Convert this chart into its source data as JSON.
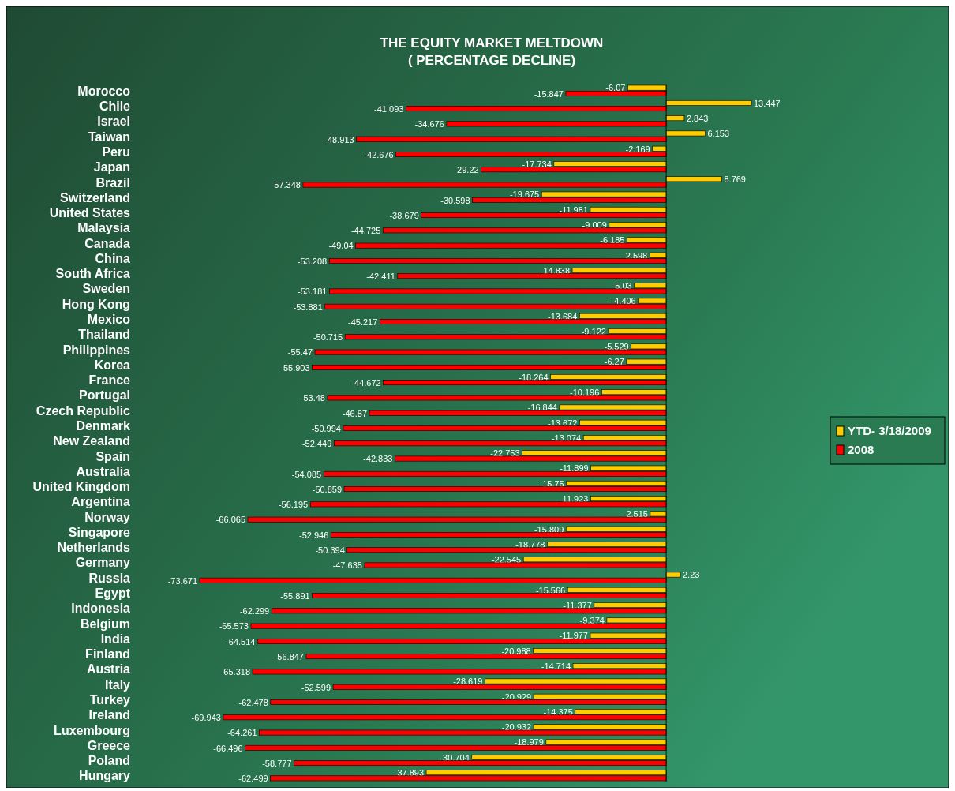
{
  "chart_data": {
    "type": "bar",
    "orientation": "horizontal",
    "title": "THE EQUITY MARKET MELTDOWN",
    "subtitle": "( PERCENTAGE DECLINE)",
    "categories": [
      "Morocco",
      "Chile",
      "Israel",
      "Taiwan",
      "Peru",
      "Japan",
      "Brazil",
      "Switzerland",
      "United States",
      "Malaysia",
      "Canada",
      "China",
      "South Africa",
      "Sweden",
      "Hong Kong",
      "Mexico",
      "Thailand",
      "Philippines",
      "Korea",
      "France",
      "Portugal",
      "Czech Republic",
      "Denmark",
      "New Zealand",
      "Spain",
      "Australia",
      "United Kingdom",
      "Argentina",
      "Norway",
      "Singapore",
      "Netherlands",
      "Germany",
      "Russia",
      "Egypt",
      "Indonesia",
      "Belgium",
      "India",
      "Finland",
      "Austria",
      "Italy",
      "Turkey",
      "Ireland",
      "Luxembourg",
      "Greece",
      "Poland",
      "Hungary"
    ],
    "series": [
      {
        "name": "YTD- 3/18/2009",
        "color": "#ffcc00",
        "values": [
          -6.07,
          13.447,
          2.843,
          6.153,
          -2.169,
          -17.734,
          8.769,
          -19.675,
          -11.981,
          -9.009,
          -6.185,
          -2.598,
          -14.838,
          -5.03,
          -4.406,
          -13.684,
          -9.122,
          -5.529,
          -6.27,
          -18.264,
          -10.196,
          -16.844,
          -13.672,
          -13.074,
          -22.753,
          -11.899,
          -15.75,
          -11.923,
          -2.515,
          -15.809,
          -18.778,
          -22.545,
          2.23,
          -15.566,
          -11.377,
          -9.374,
          -11.977,
          -20.988,
          -14.714,
          -28.619,
          -20.929,
          -14.375,
          -20.932,
          -18.979,
          -30.704,
          -37.893
        ]
      },
      {
        "name": "2008",
        "color": "#ff0000",
        "values": [
          -15.847,
          -41.093,
          -34.676,
          -48.913,
          -42.676,
          -29.22,
          -57.348,
          -30.598,
          -38.679,
          -44.725,
          -49.04,
          -53.208,
          -42.411,
          -53.181,
          -53.881,
          -45.217,
          -50.715,
          -55.47,
          -55.903,
          -44.672,
          -53.48,
          -46.87,
          -50.994,
          -52.449,
          -42.833,
          -54.085,
          -50.859,
          -56.195,
          -66.065,
          -52.946,
          -50.394,
          -47.635,
          -73.671,
          -55.891,
          -62.299,
          -65.573,
          -64.514,
          -56.847,
          -65.318,
          -52.599,
          -62.478,
          -69.943,
          -64.261,
          -66.496,
          -58.777,
          -62.499
        ]
      }
    ],
    "tick_labels": "y",
    "data_labels": true,
    "legend": "right"
  }
}
